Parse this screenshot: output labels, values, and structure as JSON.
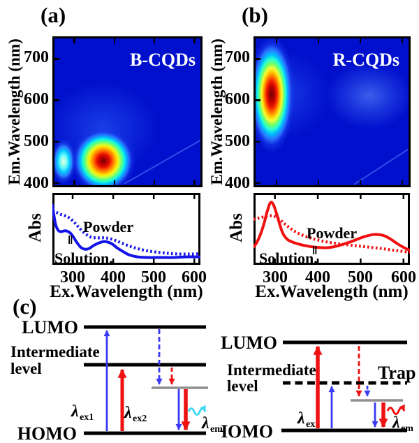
{
  "panels": {
    "a": "(a)",
    "b": "(b)",
    "c": "(c)"
  },
  "chart_data": [
    {
      "id": "eem_a",
      "type": "heatmap",
      "panel": "a",
      "title": "B-CQDs",
      "ylabel": "Em.Wavelength (nm)",
      "x_range": [
        250,
        615
      ],
      "y_range": [
        395,
        750
      ],
      "x_ticks": [
        300,
        400,
        500,
        600
      ],
      "y_ticks": [
        700,
        600,
        500,
        400
      ],
      "colormap": "jet",
      "peaks": [
        {
          "ex": 372,
          "em": 455,
          "rel_intensity": 1.0
        },
        {
          "ex": 272,
          "em": 452,
          "rel_intensity": 0.4
        }
      ]
    },
    {
      "id": "abs_a",
      "type": "line",
      "panel": "a",
      "xlabel": "Ex.Wavelength (nm)",
      "ylabel": "Abs",
      "x_range": [
        250,
        615
      ],
      "x_ticks": [
        300,
        400,
        500,
        600
      ],
      "labels": {
        "powder": "Powder",
        "solution": "Solution.",
        "break_mark": "‖"
      },
      "series": [
        {
          "name": "Powder",
          "style": "dotted",
          "color": "#1414e8",
          "x": [
            250,
            260,
            270,
            280,
            290,
            300,
            310,
            320,
            332,
            345,
            360,
            375,
            390,
            405,
            420,
            440,
            460,
            480,
            500,
            530,
            560,
            590,
            615
          ],
          "y": [
            0.79,
            0.77,
            0.74,
            0.72,
            0.69,
            0.64,
            0.57,
            0.5,
            0.43,
            0.38,
            0.37,
            0.37,
            0.36,
            0.33,
            0.29,
            0.24,
            0.2,
            0.17,
            0.15,
            0.13,
            0.115,
            0.115,
            0.12
          ]
        },
        {
          "name": "Solution",
          "style": "solid",
          "color": "#1414e8",
          "x": [
            250,
            254,
            258,
            263,
            268,
            274,
            281,
            288,
            295,
            302,
            310,
            320,
            330,
            340,
            352,
            365,
            378,
            388,
            398,
            410,
            425,
            440,
            460,
            485,
            515,
            550,
            580,
            615
          ],
          "y": [
            0.9,
            0.72,
            0.58,
            0.5,
            0.47,
            0.47,
            0.48,
            0.47,
            0.44,
            0.38,
            0.3,
            0.22,
            0.19,
            0.2,
            0.25,
            0.29,
            0.31,
            0.3,
            0.27,
            0.21,
            0.15,
            0.1,
            0.07,
            0.06,
            0.06,
            0.06,
            0.07,
            0.07
          ]
        }
      ]
    },
    {
      "id": "eem_b",
      "type": "heatmap",
      "panel": "b",
      "title": "R-CQDs",
      "ylabel": "Em.Wavelength (nm)",
      "x_range": [
        250,
        615
      ],
      "y_range": [
        395,
        750
      ],
      "x_ticks": [
        300,
        400,
        500,
        600
      ],
      "y_ticks": [
        700,
        600,
        500,
        400
      ],
      "colormap": "jet",
      "peaks": [
        {
          "ex": 289,
          "em": 614,
          "rel_intensity": 1.0
        },
        {
          "ex": 521,
          "em": 612,
          "rel_intensity": 0.15
        }
      ]
    },
    {
      "id": "abs_b",
      "type": "line",
      "panel": "b",
      "xlabel": "Ex.Wavelength (nm)",
      "ylabel": "Abs",
      "x_range": [
        250,
        615
      ],
      "x_ticks": [
        300,
        400,
        500,
        600
      ],
      "labels": {
        "powder": "Powder",
        "solution": "Solution.",
        "break_mark": "‖"
      },
      "series": [
        {
          "name": "Powder",
          "style": "dotted",
          "color": "#f01010",
          "x": [
            250,
            262,
            274,
            286,
            296,
            306,
            316,
            328,
            342,
            358,
            375,
            392,
            410,
            430,
            450,
            470,
            490,
            510,
            530,
            550,
            570,
            590,
            615
          ],
          "y": [
            0.66,
            0.68,
            0.7,
            0.715,
            0.715,
            0.68,
            0.63,
            0.56,
            0.49,
            0.43,
            0.385,
            0.35,
            0.32,
            0.295,
            0.275,
            0.26,
            0.245,
            0.23,
            0.215,
            0.2,
            0.18,
            0.165,
            0.14
          ]
        },
        {
          "name": "Solution",
          "style": "solid",
          "color": "#f01010",
          "x": [
            250,
            258,
            266,
            274,
            281,
            287,
            291,
            295,
            300,
            306,
            313,
            320,
            330,
            342,
            356,
            372,
            390,
            408,
            425,
            442,
            460,
            478,
            495,
            512,
            528,
            542,
            556,
            570,
            585,
            600,
            615
          ],
          "y": [
            0.22,
            0.3,
            0.42,
            0.58,
            0.76,
            0.89,
            0.93,
            0.91,
            0.83,
            0.7,
            0.54,
            0.42,
            0.34,
            0.3,
            0.27,
            0.245,
            0.225,
            0.215,
            0.215,
            0.235,
            0.27,
            0.31,
            0.355,
            0.395,
            0.42,
            0.42,
            0.4,
            0.35,
            0.28,
            0.22,
            0.17
          ]
        }
      ]
    }
  ],
  "panel_c": {
    "left": {
      "lumo": "LUMO",
      "intermediate_line1": "Intermediate",
      "intermediate_line2": "level",
      "homo": "HOMO",
      "lambda_ex1": {
        "base": "λ",
        "sub": "ex1"
      },
      "lambda_ex2": {
        "base": "λ",
        "sub": "ex2"
      },
      "lambda_em": {
        "base": "λ",
        "sub": "em"
      }
    },
    "right": {
      "lumo": "LUMO",
      "intermediate_line1": "Intermediate",
      "intermediate_line2": "level",
      "trap": "Trap",
      "homo": "HOMO",
      "lambda_ex": {
        "base": "λ",
        "sub": "ex"
      },
      "lambda_em": {
        "base": "λ",
        "sub": "em"
      }
    },
    "colors": {
      "excitation_blue": "#3a3af5",
      "excitation_red": "#ee1111",
      "emission_cyan": "#45d8f0",
      "emission_red": "#ee1111",
      "trap_level_gray": "#8f8f8f"
    }
  }
}
